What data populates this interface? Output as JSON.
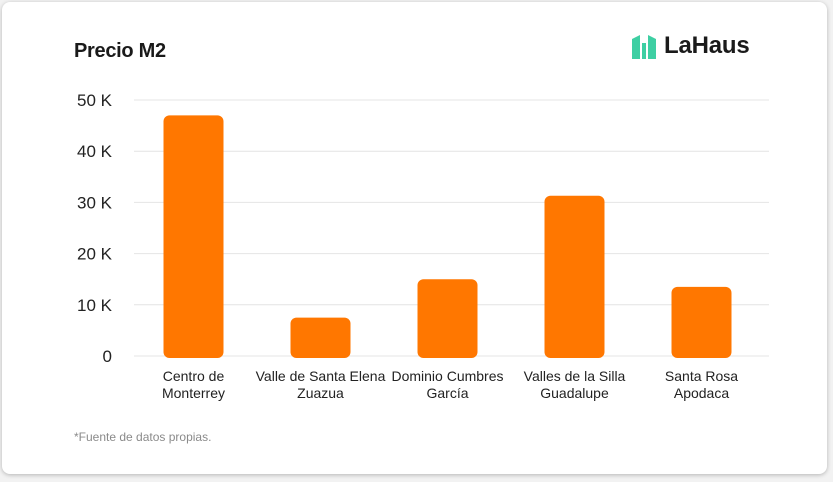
{
  "brand": {
    "name": "LaHaus",
    "logo_color": "#3ecfa3"
  },
  "footnote": "*Fuente de datos propias.",
  "chart_data": {
    "type": "bar",
    "title": "Precio M2",
    "categories": [
      [
        "Centro de",
        "Monterrey"
      ],
      [
        "Valle de Santa Elena",
        "Zuazua"
      ],
      [
        "Dominio Cumbres",
        "García"
      ],
      [
        "Valles de la Silla",
        "Guadalupe"
      ],
      [
        "Santa Rosa",
        "Apodaca"
      ]
    ],
    "values": [
      47000,
      7500,
      15000,
      31300,
      13500
    ],
    "ylim": [
      0,
      50000
    ],
    "yticks": [
      0,
      10000,
      20000,
      30000,
      40000,
      50000
    ],
    "ytick_labels": [
      "0",
      "10 K",
      "20 K",
      "30 K",
      "40 K",
      "50 K"
    ],
    "bar_color": "#ff7700",
    "grid": true
  }
}
